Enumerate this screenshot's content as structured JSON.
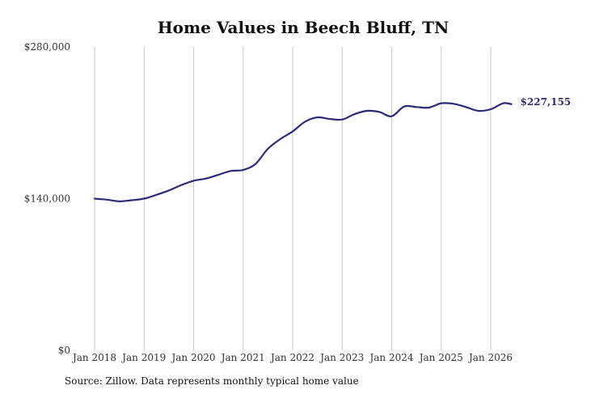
{
  "chart_data": {
    "type": "line",
    "title": "Home Values in Beech Bluff, TN",
    "xlabel": "",
    "ylabel": "",
    "ylim": [
      0,
      280000
    ],
    "yticks": [
      {
        "value": 0,
        "label": "$0"
      },
      {
        "value": 140000,
        "label": "$140,000"
      },
      {
        "value": 280000,
        "label": "$280,000"
      }
    ],
    "xticks": [
      {
        "year": 2018,
        "label": "Jan 2018"
      },
      {
        "year": 2019,
        "label": "Jan 2019"
      },
      {
        "year": 2020,
        "label": "Jan 2020"
      },
      {
        "year": 2021,
        "label": "Jan 2021"
      },
      {
        "year": 2022,
        "label": "Jan 2022"
      },
      {
        "year": 2023,
        "label": "Jan 2023"
      },
      {
        "year": 2024,
        "label": "Jan 2024"
      },
      {
        "year": 2025,
        "label": "Jan 2025"
      },
      {
        "year": 2026,
        "label": "Jan 2026"
      }
    ],
    "grid": "vertical",
    "line_color": "#2e2a7a",
    "end_label": "$227,155",
    "series": [
      {
        "name": "",
        "points": [
          [
            "2018-01",
            140000
          ],
          [
            "2018-04",
            139000
          ],
          [
            "2018-07",
            137500
          ],
          [
            "2018-10",
            138500
          ],
          [
            "2019-01",
            140000
          ],
          [
            "2019-04",
            143500
          ],
          [
            "2019-07",
            147500
          ],
          [
            "2019-10",
            152500
          ],
          [
            "2020-01",
            156500
          ],
          [
            "2020-04",
            158500
          ],
          [
            "2020-07",
            162000
          ],
          [
            "2020-10",
            165500
          ],
          [
            "2021-01",
            166500
          ],
          [
            "2021-04",
            172000
          ],
          [
            "2021-07",
            186000
          ],
          [
            "2021-10",
            195000
          ],
          [
            "2022-01",
            202000
          ],
          [
            "2022-04",
            211000
          ],
          [
            "2022-07",
            215000
          ],
          [
            "2022-10",
            213500
          ],
          [
            "2023-01",
            213000
          ],
          [
            "2023-04",
            218000
          ],
          [
            "2023-07",
            221000
          ],
          [
            "2023-10",
            220000
          ],
          [
            "2024-01",
            216000
          ],
          [
            "2024-04",
            225000
          ],
          [
            "2024-07",
            224500
          ],
          [
            "2024-10",
            224000
          ],
          [
            "2025-01",
            228000
          ],
          [
            "2025-04",
            227500
          ],
          [
            "2025-07",
            224500
          ],
          [
            "2025-10",
            221000
          ],
          [
            "2026-01",
            222500
          ],
          [
            "2026-04",
            228000
          ],
          [
            "2026-06",
            227155
          ]
        ]
      }
    ]
  },
  "footer": {
    "source": "Source: Zillow. Data represents monthly typical home value"
  }
}
